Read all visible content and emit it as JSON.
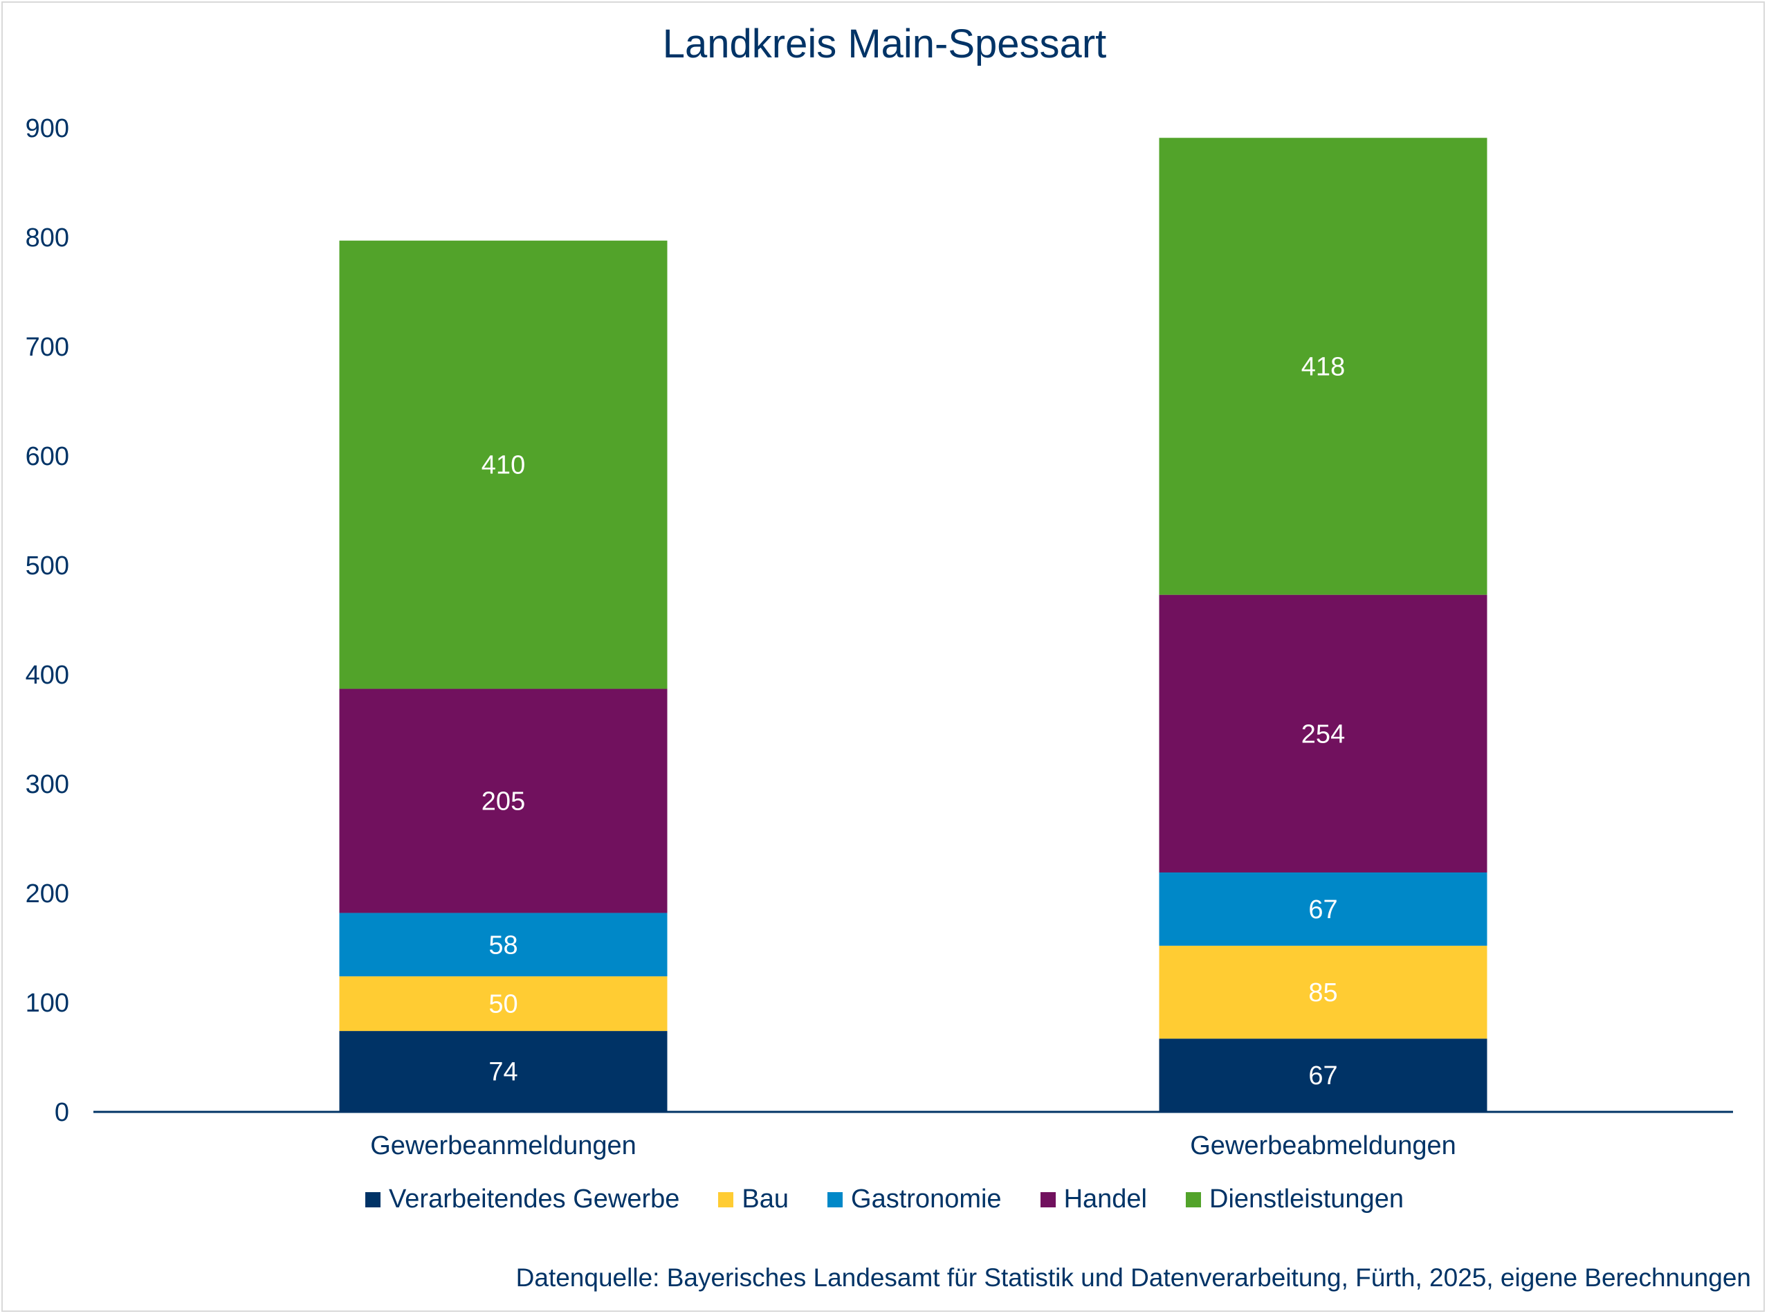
{
  "chart_data": {
    "type": "bar",
    "stacked": true,
    "title": "Landkreis Main-Spessart",
    "categories": [
      "Gewerbeanmeldungen",
      "Gewerbeabmeldungen"
    ],
    "series": [
      {
        "name": "Verarbeitendes Gewerbe",
        "color": "#003366",
        "values": [
          74,
          67
        ]
      },
      {
        "name": "Bau",
        "color": "#ffcc33",
        "values": [
          50,
          85
        ]
      },
      {
        "name": "Gastronomie",
        "color": "#0088c8",
        "values": [
          58,
          67
        ]
      },
      {
        "name": "Handel",
        "color": "#71115e",
        "values": [
          205,
          254
        ]
      },
      {
        "name": "Dienstleistungen",
        "color": "#52a32a",
        "values": [
          410,
          418
        ]
      }
    ],
    "ylim": [
      0,
      900
    ],
    "yticks": [
      0,
      100,
      200,
      300,
      400,
      500,
      600,
      700,
      800,
      900
    ],
    "xlabel": "",
    "ylabel": "",
    "grid": false,
    "legend_position": "bottom",
    "source": "Datenquelle: Bayerisches Landesamt für Statistik und Datenverarbeitung, Fürth, 2025, eigene Berechnungen"
  }
}
